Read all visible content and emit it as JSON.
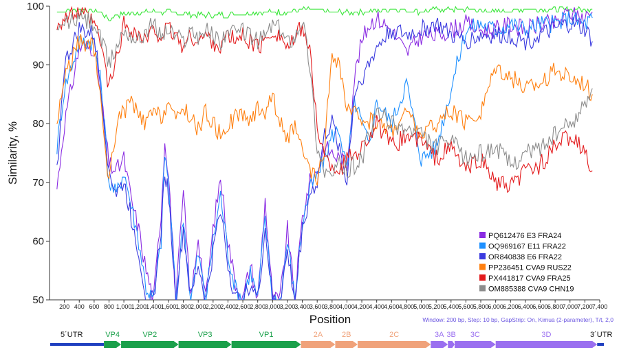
{
  "chart_data": {
    "type": "line",
    "ylabel": "Similarity, %",
    "xlabel": "Position",
    "xlim": [
      0,
      7400
    ],
    "ylim": [
      50,
      100
    ],
    "x_ticks": [
      200,
      400,
      600,
      800,
      1000,
      1200,
      1400,
      1600,
      1800,
      2000,
      2200,
      2400,
      2600,
      2800,
      3000,
      3200,
      3400,
      3600,
      3800,
      4000,
      4200,
      4400,
      4600,
      4800,
      5000,
      5200,
      5400,
      5600,
      5800,
      6000,
      6200,
      6400,
      6600,
      6800,
      7000,
      7200,
      7400
    ],
    "x_tick_labels": [
      "200",
      "400",
      "600",
      "800",
      "1,000",
      "1,200",
      "1,400",
      "1,600",
      "1,800",
      "2,000",
      "2,200",
      "2,400",
      "2,600",
      "2,800",
      "3,000",
      "3,200",
      "3,400",
      "3,600",
      "3,800",
      "4,000",
      "4,200",
      "4,400",
      "4,600",
      "4,800",
      "5,000",
      "5,200",
      "5,400",
      "5,600",
      "5,800",
      "6,000",
      "6,200",
      "6,400",
      "6,600",
      "6,800",
      "7,000",
      "7,200",
      "7,400"
    ],
    "y_ticks": [
      50,
      60,
      70,
      80,
      90,
      100
    ],
    "y_tick_labels": [
      "50",
      "60",
      "70",
      "80",
      "90",
      "100"
    ],
    "legend_position": "bottom-right",
    "params_text": "Window: 200 bp, Step: 10 bp, GapStrip: On, Kimua (2-parameter), T/t, 2,0",
    "reference_color": "#39e639",
    "reference_series": {
      "x": [
        100,
        400,
        700,
        800,
        900,
        1200,
        1600,
        2000,
        2400,
        2800,
        3000,
        3200,
        3400,
        3800,
        4200,
        4600,
        5000,
        5200,
        5600,
        6000,
        6400,
        6800,
        7000,
        7300
      ],
      "y": [
        99.0,
        99.5,
        99.0,
        97.5,
        98.5,
        99.0,
        99.0,
        98.5,
        98.5,
        99.0,
        99.0,
        99.0,
        99.5,
        99.0,
        99.0,
        99.5,
        99.0,
        99.5,
        99.5,
        99.0,
        99.5,
        99.5,
        99.5,
        99.5
      ]
    },
    "series": [
      {
        "name": "PQ612476 E3 FRA24",
        "color": "#8a2be2",
        "x": [
          100,
          200,
          400,
          600,
          700,
          800,
          900,
          1000,
          1100,
          1200,
          1300,
          1400,
          1500,
          1550,
          1600,
          1700,
          1800,
          1900,
          2000,
          2100,
          2200,
          2300,
          2400,
          2500,
          2600,
          2700,
          2800,
          2900,
          3000,
          3100,
          3200,
          3300,
          3400,
          3500,
          3600,
          3700,
          3800,
          3900,
          4000,
          4100,
          4200,
          4300,
          4400,
          4600,
          4800,
          5000,
          5200,
          5400,
          5600,
          5800,
          6000,
          6200,
          6400,
          6600,
          6800,
          7000,
          7200,
          7300
        ],
        "y": [
          69,
          80,
          93,
          93,
          84,
          73,
          72,
          74,
          67,
          62,
          55,
          50,
          65,
          77,
          72,
          50,
          68,
          50,
          61,
          50,
          62,
          71,
          60,
          53,
          50,
          56,
          50,
          67,
          50,
          50,
          62,
          50,
          64,
          70,
          72,
          76,
          75,
          74,
          73,
          88,
          94,
          97,
          98,
          96,
          92,
          95,
          95,
          96,
          97,
          96,
          96,
          97,
          96,
          97,
          97,
          99,
          98,
          99
        ]
      },
      {
        "name": "OQ969167 E11 FRA22",
        "color": "#1e90ff",
        "x": [
          100,
          200,
          400,
          600,
          700,
          800,
          900,
          1000,
          1100,
          1200,
          1300,
          1400,
          1500,
          1550,
          1600,
          1700,
          1800,
          1900,
          2000,
          2100,
          2200,
          2300,
          2400,
          2500,
          2600,
          2700,
          2800,
          2900,
          3000,
          3100,
          3200,
          3300,
          3400,
          3500,
          3600,
          3700,
          3800,
          3900,
          4000,
          4100,
          4200,
          4300,
          4400,
          4600,
          4800,
          5000,
          5200,
          5400,
          5600,
          5800,
          6000,
          6200,
          6400,
          6600,
          6800,
          7000,
          7200,
          7300
        ],
        "y": [
          76,
          86,
          94,
          94,
          86,
          70,
          68,
          72,
          66,
          60,
          52,
          50,
          60,
          75,
          70,
          50,
          64,
          50,
          58,
          50,
          60,
          68,
          58,
          52,
          50,
          55,
          50,
          64,
          50,
          50,
          60,
          50,
          63,
          69,
          71,
          74,
          78,
          79,
          72,
          84,
          80,
          76,
          84,
          80,
          87,
          74,
          76,
          86,
          96,
          97,
          96,
          97,
          96,
          97,
          97,
          98,
          97,
          98
        ]
      },
      {
        "name": "OR840838 E6 FRA22",
        "color": "#3a3adf",
        "x": [
          100,
          200,
          400,
          600,
          700,
          800,
          900,
          1000,
          1100,
          1200,
          1300,
          1400,
          1500,
          1550,
          1600,
          1700,
          1800,
          1900,
          2000,
          2100,
          2200,
          2300,
          2400,
          2500,
          2600,
          2700,
          2800,
          2900,
          3000,
          3100,
          3200,
          3300,
          3400,
          3500,
          3600,
          3700,
          3800,
          3900,
          4000,
          4100,
          4200,
          4300,
          4400,
          4600,
          4800,
          5000,
          5200,
          5400,
          5600,
          5800,
          6000,
          6200,
          6400,
          6600,
          6800,
          7000,
          7200,
          7300
        ],
        "y": [
          72,
          90,
          96,
          95,
          85,
          72,
          68,
          70,
          64,
          58,
          50,
          50,
          62,
          72,
          68,
          50,
          62,
          50,
          56,
          50,
          58,
          66,
          56,
          50,
          50,
          53,
          50,
          62,
          50,
          50,
          58,
          50,
          62,
          68,
          70,
          78,
          80,
          76,
          70,
          85,
          88,
          90,
          93,
          96,
          95,
          96,
          97,
          95,
          94,
          95,
          95,
          95,
          94,
          95,
          96,
          97,
          96,
          94
        ]
      },
      {
        "name": "PP236451 CVA9 RUS22",
        "color": "#ff7f0e",
        "x": [
          100,
          200,
          400,
          600,
          700,
          800,
          900,
          1000,
          1100,
          1200,
          1300,
          1400,
          1500,
          1600,
          1700,
          1800,
          1900,
          2000,
          2100,
          2200,
          2300,
          2400,
          2500,
          2600,
          2700,
          2800,
          2900,
          3000,
          3100,
          3200,
          3300,
          3400,
          3500,
          3600,
          3700,
          3800,
          3900,
          4000,
          4200,
          4400,
          4600,
          4800,
          5000,
          5200,
          5400,
          5600,
          5800,
          6000,
          6200,
          6400,
          6600,
          6800,
          7000,
          7200,
          7300
        ],
        "y": [
          80,
          88,
          94,
          93,
          82,
          70,
          80,
          82,
          84,
          81,
          80,
          82,
          81,
          84,
          80,
          83,
          81,
          79,
          82,
          80,
          78,
          80,
          81,
          82,
          80,
          83,
          82,
          85,
          80,
          78,
          79,
          75,
          72,
          70,
          76,
          92,
          90,
          82,
          81,
          80,
          79,
          82,
          78,
          80,
          82,
          80,
          82,
          90,
          88,
          86,
          87,
          89,
          88,
          87,
          85
        ]
      },
      {
        "name": "PX441817 CVA9 FRA25",
        "color": "#e31a1c",
        "x": [
          100,
          200,
          400,
          600,
          700,
          800,
          900,
          1000,
          1100,
          1200,
          1300,
          1400,
          1500,
          1600,
          1700,
          1800,
          1900,
          2000,
          2100,
          2200,
          2300,
          2400,
          2500,
          2600,
          2700,
          2800,
          2900,
          3000,
          3100,
          3200,
          3300,
          3400,
          3500,
          3600,
          3700,
          3800,
          3900,
          4000,
          4200,
          4400,
          4600,
          4800,
          5000,
          5200,
          5400,
          5600,
          5800,
          6000,
          6200,
          6400,
          6600,
          6800,
          7000,
          7200,
          7300
        ],
        "y": [
          97,
          98,
          99,
          97,
          93,
          86,
          91,
          97,
          96,
          95,
          94,
          96,
          95,
          96,
          95,
          93,
          95,
          94,
          95,
          94,
          93,
          95,
          94,
          95,
          94,
          93,
          94,
          96,
          95,
          93,
          94,
          97,
          92,
          80,
          74,
          73,
          72,
          74,
          76,
          80,
          76,
          78,
          77,
          74,
          76,
          72,
          74,
          70,
          69,
          72,
          73,
          76,
          78,
          75,
          72
        ]
      },
      {
        "name": "OM885388 CVA9 CHN19",
        "color": "#8c8c8c",
        "x": [
          100,
          200,
          400,
          600,
          700,
          800,
          900,
          1000,
          1100,
          1200,
          1300,
          1400,
          1500,
          1600,
          1700,
          1800,
          1900,
          2000,
          2100,
          2200,
          2300,
          2400,
          2500,
          2600,
          2700,
          2800,
          2900,
          3000,
          3100,
          3200,
          3300,
          3400,
          3500,
          3600,
          3700,
          3800,
          3900,
          4000,
          4200,
          4400,
          4600,
          4800,
          5000,
          5200,
          5400,
          5600,
          5800,
          6000,
          6200,
          6400,
          6600,
          6800,
          7000,
          7200,
          7300
        ],
        "y": [
          95,
          97,
          98,
          97,
          94,
          90,
          93,
          96,
          95,
          94,
          96,
          97,
          95,
          96,
          95,
          94,
          96,
          95,
          96,
          95,
          94,
          96,
          95,
          96,
          95,
          94,
          95,
          97,
          96,
          94,
          95,
          98,
          90,
          76,
          72,
          71,
          73,
          72,
          74,
          82,
          80,
          79,
          78,
          76,
          77,
          74,
          75,
          76,
          73,
          75,
          76,
          78,
          80,
          83,
          86
        ]
      }
    ],
    "genome_regions": [
      {
        "label": "5´UTR",
        "start": 0,
        "end": 720,
        "color": "#1f3fc0"
      },
      {
        "label": "VP4",
        "start": 720,
        "end": 950,
        "color": "#1aa04a"
      },
      {
        "label": "VP2",
        "start": 950,
        "end": 1720,
        "color": "#1aa04a"
      },
      {
        "label": "VP3",
        "start": 1720,
        "end": 2430,
        "color": "#1aa04a"
      },
      {
        "label": "VP1",
        "start": 2430,
        "end": 3360,
        "color": "#1aa04a"
      },
      {
        "label": "2A",
        "start": 3360,
        "end": 3820,
        "color": "#f0a27a"
      },
      {
        "label": "2B",
        "start": 3820,
        "end": 4120,
        "color": "#f0a27a"
      },
      {
        "label": "2C",
        "start": 4120,
        "end": 5100,
        "color": "#f0a27a"
      },
      {
        "label": "3A",
        "start": 5100,
        "end": 5330,
        "color": "#9a6ff0"
      },
      {
        "label": "3B",
        "start": 5330,
        "end": 5420,
        "color": "#9a6ff0"
      },
      {
        "label": "3C",
        "start": 5420,
        "end": 5970,
        "color": "#9a6ff0"
      },
      {
        "label": "3D",
        "start": 5970,
        "end": 7330,
        "color": "#9a6ff0"
      },
      {
        "label": "3´UTR",
        "start": 7330,
        "end": 7420,
        "color": "#1f3fc0"
      }
    ]
  }
}
